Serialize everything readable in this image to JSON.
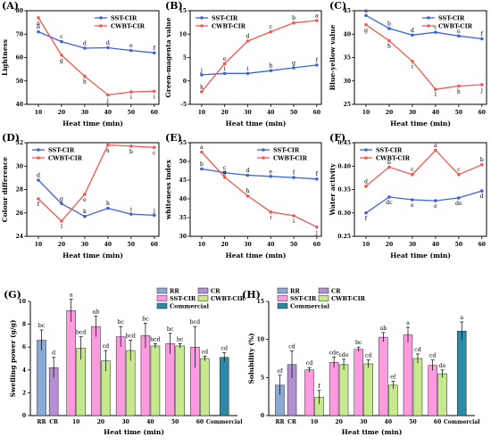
{
  "chart_data": [
    {
      "panel_label": "(A)",
      "type": "line",
      "ylabel": "Lightness",
      "xlabel": "Heat time (min)",
      "x": [
        10,
        20,
        30,
        40,
        50,
        60
      ],
      "xlim": [
        5,
        62
      ],
      "xticks": [
        10,
        20,
        30,
        40,
        50,
        60
      ],
      "ylim": [
        40,
        80
      ],
      "yticks": [
        40,
        50,
        60,
        70,
        80
      ],
      "legend_position": "top-right",
      "series": [
        {
          "name": "SST-CIR",
          "color": "#3c64d8",
          "values": [
            71.0,
            66.8,
            64.0,
            64.2,
            63.0,
            62.0
          ],
          "letters": [
            "b",
            "c",
            "d",
            "d",
            "e",
            "f"
          ],
          "letter_pos": "above"
        },
        {
          "name": "CWBT-CIR",
          "color": "#f05a50",
          "values": [
            77.0,
            61.0,
            52.0,
            44.0,
            45.3,
            45.6
          ],
          "letters": [
            "a",
            "g",
            "h",
            "j",
            "i",
            "i"
          ],
          "letter_pos": "below"
        }
      ]
    },
    {
      "panel_label": "(B)",
      "type": "line",
      "ylabel": "Green-magenta value",
      "xlabel": "Heat time (min)",
      "x": [
        10,
        20,
        30,
        40,
        50,
        60
      ],
      "xlim": [
        5,
        62
      ],
      "xticks": [
        10,
        20,
        30,
        40,
        50,
        60
      ],
      "ylim": [
        -5,
        15
      ],
      "yticks": [
        -5,
        0,
        5,
        10,
        15
      ],
      "legend_position": "top-left",
      "series": [
        {
          "name": "SST-CIR",
          "color": "#3c64d8",
          "values": [
            1.3,
            1.6,
            1.6,
            2.2,
            2.8,
            3.4
          ],
          "letters": [
            "j",
            "i",
            "i",
            "h",
            "g",
            "f"
          ],
          "letter_pos": "above"
        },
        {
          "name": "CWBT-CIR",
          "color": "#f05a50",
          "values": [
            -2.3,
            3.7,
            8.5,
            10.5,
            12.4,
            12.9
          ],
          "letters": [
            "k",
            "e",
            "d",
            "c",
            "b",
            "a"
          ],
          "letter_pos": "above"
        }
      ]
    },
    {
      "panel_label": "(C)",
      "type": "line",
      "ylabel": "Blue-yellow value",
      "xlabel": "Heat time (min)",
      "x": [
        10,
        20,
        30,
        40,
        50,
        60
      ],
      "xlim": [
        5,
        62
      ],
      "xticks": [
        10,
        20,
        30,
        40,
        50,
        60
      ],
      "ylim": [
        25,
        45
      ],
      "yticks": [
        25,
        30,
        35,
        40,
        45
      ],
      "legend_position": "top-right",
      "series": [
        {
          "name": "SST-CIR",
          "color": "#3c64d8",
          "values": [
            44.0,
            41.2,
            39.8,
            40.4,
            39.6,
            39.0
          ],
          "letters": [
            "a",
            "b",
            "d",
            "c",
            "e",
            "f"
          ],
          "letter_pos": "above"
        },
        {
          "name": "CWBT-CIR",
          "color": "#f05a50",
          "values": [
            42.0,
            38.6,
            34.2,
            28.2,
            28.9,
            29.2
          ],
          "letters": [
            "g",
            "h",
            "i",
            "l",
            "k",
            "j"
          ],
          "letter_pos": "below"
        }
      ]
    },
    {
      "panel_label": "(D)",
      "type": "line",
      "ylabel": "Colour difference",
      "xlabel": "Heat time (min)",
      "x": [
        10,
        20,
        30,
        40,
        50,
        60
      ],
      "xlim": [
        5,
        62
      ],
      "xticks": [
        10,
        20,
        30,
        40,
        50,
        60
      ],
      "ylim": [
        24,
        32
      ],
      "yticks": [
        24,
        26,
        28,
        30,
        32
      ],
      "legend_position": "top-left",
      "series": [
        {
          "name": "SST-CIR",
          "color": "#3c64d8",
          "values": [
            28.8,
            26.8,
            25.7,
            26.4,
            25.9,
            25.8
          ],
          "letters": [
            "d",
            "g",
            "k",
            "h",
            "i",
            "j"
          ],
          "letter_pos": "above"
        },
        {
          "name": "CWBT-CIR",
          "color": "#f05a50",
          "values": [
            27.2,
            25.3,
            27.6,
            31.8,
            31.7,
            31.6
          ],
          "letters": [
            "f",
            "l",
            "e",
            "a",
            "b",
            "c"
          ],
          "letter_pos": "below"
        }
      ]
    },
    {
      "panel_label": "(E)",
      "type": "line",
      "ylabel": "whiteness index",
      "xlabel": "Heat time (min)",
      "x": [
        10,
        20,
        30,
        40,
        50,
        60
      ],
      "xlim": [
        5,
        62
      ],
      "xticks": [
        10,
        20,
        30,
        40,
        50,
        60
      ],
      "ylim": [
        30,
        55
      ],
      "yticks": [
        30,
        35,
        40,
        45,
        50,
        55
      ],
      "legend_position": "top-right",
      "series": [
        {
          "name": "SST-CIR",
          "color": "#3c64d8",
          "values": [
            48.0,
            47.0,
            46.3,
            46.0,
            45.7,
            45.3
          ],
          "letters": [
            "b",
            "c",
            "d",
            "e",
            "f",
            "f"
          ],
          "letter_pos": "above"
        },
        {
          "name": "CWBT-CIR",
          "color": "#f05a50",
          "values": [
            52.5,
            45.8,
            40.8,
            36.5,
            35.5,
            32.5
          ],
          "letters": [
            "a",
            "g",
            "h",
            "i",
            "i",
            "j"
          ],
          "letter_pos": "mixed"
        }
      ]
    },
    {
      "panel_label": "(F)",
      "type": "line",
      "ylabel": "Water activity",
      "xlabel": "Heat time (min)",
      "x": [
        10,
        20,
        30,
        40,
        50,
        60
      ],
      "xlim": [
        5,
        62
      ],
      "xticks": [
        10,
        20,
        30,
        40,
        50,
        60
      ],
      "ylim": [
        0.25,
        0.45
      ],
      "yticks": [
        0.25,
        0.3,
        0.35,
        0.4,
        0.45
      ],
      "legend_position": "top-left",
      "series": [
        {
          "name": "SST-CIR",
          "color": "#3c64d8",
          "values": [
            0.3,
            0.334,
            0.328,
            0.326,
            0.332,
            0.347
          ],
          "letters": [
            "f",
            "dc",
            "e",
            "e",
            "de",
            "d"
          ],
          "letter_pos": "below"
        },
        {
          "name": "CWBT-CIR",
          "color": "#f05a50",
          "values": [
            0.357,
            0.398,
            0.382,
            0.434,
            0.382,
            0.403
          ],
          "letters": [
            "d",
            "b",
            "c",
            "a",
            "c",
            "b"
          ],
          "letter_pos": "above"
        }
      ]
    },
    {
      "panel_label": "(G)",
      "type": "bar",
      "ylabel": "Swelling power (g/g)",
      "xlabel": "Heat time (min)",
      "ylim": [
        0,
        10
      ],
      "yticks": [
        0,
        2,
        4,
        6,
        8,
        10
      ],
      "legend_position": "top-right",
      "legend": [
        {
          "name": "RR",
          "color": "#8aaad6"
        },
        {
          "name": "CR",
          "color": "#b48fd1"
        },
        {
          "name": "SST-CIR",
          "color": "#ff99e0"
        },
        {
          "name": "CWBT-CIR",
          "color": "#c5e98c"
        },
        {
          "name": "Commercial",
          "color": "#2b8aa8"
        }
      ],
      "groups": [
        {
          "label": "RR",
          "bars": [
            {
              "series": "RR",
              "value": 6.6,
              "err": 0.9,
              "letter": "bc"
            }
          ]
        },
        {
          "label": "CR",
          "bars": [
            {
              "series": "CR",
              "value": 4.2,
              "err": 0.9,
              "letter": "d"
            }
          ]
        },
        {
          "label": "10",
          "bars": [
            {
              "series": "SST-CIR",
              "value": 9.2,
              "err": 1.0,
              "letter": "a"
            },
            {
              "series": "CWBT-CIR",
              "value": 5.9,
              "err": 1.0,
              "letter": "bcd"
            }
          ]
        },
        {
          "label": "20",
          "bars": [
            {
              "series": "SST-CIR",
              "value": 7.8,
              "err": 0.9,
              "letter": "ab"
            },
            {
              "series": "CWBT-CIR",
              "value": 4.8,
              "err": 0.9,
              "letter": "cd"
            }
          ]
        },
        {
          "label": "30",
          "bars": [
            {
              "series": "SST-CIR",
              "value": 6.9,
              "err": 0.9,
              "letter": "bc"
            },
            {
              "series": "CWBT-CIR",
              "value": 5.7,
              "err": 0.9,
              "letter": "bcd"
            }
          ]
        },
        {
          "label": "40",
          "bars": [
            {
              "series": "SST-CIR",
              "value": 7.0,
              "err": 1.1,
              "letter": "bc"
            },
            {
              "series": "CWBT-CIR",
              "value": 6.1,
              "err": 0.2,
              "letter": "bcd"
            }
          ]
        },
        {
          "label": "50",
          "bars": [
            {
              "series": "SST-CIR",
              "value": 6.3,
              "err": 0.9,
              "letter": "bc"
            },
            {
              "series": "CWBT-CIR",
              "value": 6.1,
              "err": 0.2,
              "letter": "bc"
            }
          ]
        },
        {
          "label": "60",
          "bars": [
            {
              "series": "SST-CIR",
              "value": 6.0,
              "err": 1.8,
              "letter": "bcd"
            },
            {
              "series": "CWBT-CIR",
              "value": 5.0,
              "err": 0.2,
              "letter": "cd"
            }
          ]
        },
        {
          "label": "Commercial",
          "bars": [
            {
              "series": "Commercial",
              "value": 5.1,
              "err": 0.4,
              "letter": "cd"
            }
          ]
        }
      ]
    },
    {
      "panel_label": "(H)",
      "type": "bar",
      "ylabel": "Solubility (%)",
      "xlabel": "Heat time (min)",
      "ylim": [
        0,
        15
      ],
      "yticks": [
        0,
        5,
        10,
        15
      ],
      "legend_position": "top-left",
      "legend": [
        {
          "name": "RR",
          "color": "#8aaad6"
        },
        {
          "name": "CR",
          "color": "#b48fd1"
        },
        {
          "name": "SST-CIR",
          "color": "#ff99e0"
        },
        {
          "name": "CWBT-CIR",
          "color": "#c5e98c"
        },
        {
          "name": "Commercial",
          "color": "#2b8aa8"
        }
      ],
      "groups": [
        {
          "label": "RR",
          "bars": [
            {
              "series": "RR",
              "value": 4.0,
              "err": 1.3,
              "letter": "ef"
            }
          ]
        },
        {
          "label": "CR",
          "bars": [
            {
              "series": "CR",
              "value": 6.7,
              "err": 1.8,
              "letter": "cd"
            }
          ]
        },
        {
          "label": "10",
          "bars": [
            {
              "series": "SST-CIR",
              "value": 6.0,
              "err": 0.3,
              "letter": "cd"
            },
            {
              "series": "CWBT-CIR",
              "value": 2.4,
              "err": 0.9,
              "letter": "f"
            }
          ]
        },
        {
          "label": "20",
          "bars": [
            {
              "series": "SST-CIR",
              "value": 7.0,
              "err": 0.7,
              "letter": "cde"
            },
            {
              "series": "CWBT-CIR",
              "value": 6.7,
              "err": 0.7,
              "letter": "cde"
            }
          ]
        },
        {
          "label": "30",
          "bars": [
            {
              "series": "SST-CIR",
              "value": 8.7,
              "err": 0.3,
              "letter": "bc"
            },
            {
              "series": "CWBT-CIR",
              "value": 6.8,
              "err": 0.5,
              "letter": "cd"
            }
          ]
        },
        {
          "label": "40",
          "bars": [
            {
              "series": "SST-CIR",
              "value": 10.3,
              "err": 0.6,
              "letter": "ab"
            },
            {
              "series": "CWBT-CIR",
              "value": 4.0,
              "err": 0.5,
              "letter": "ef"
            }
          ]
        },
        {
          "label": "50",
          "bars": [
            {
              "series": "SST-CIR",
              "value": 10.6,
              "err": 1.0,
              "letter": "a"
            },
            {
              "series": "CWBT-CIR",
              "value": 7.5,
              "err": 0.6,
              "letter": "cd"
            }
          ]
        },
        {
          "label": "60",
          "bars": [
            {
              "series": "SST-CIR",
              "value": 6.6,
              "err": 0.7,
              "letter": "cd"
            },
            {
              "series": "CWBT-CIR",
              "value": 5.5,
              "err": 0.5,
              "letter": "de"
            }
          ]
        },
        {
          "label": "Commercial",
          "bars": [
            {
              "series": "Commercial",
              "value": 11.1,
              "err": 1.2,
              "letter": "a"
            }
          ]
        }
      ]
    }
  ]
}
